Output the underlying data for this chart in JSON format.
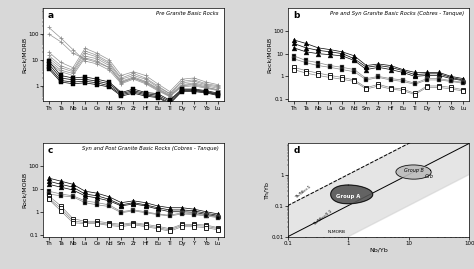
{
  "elements": [
    "Th",
    "Ta",
    "Nb",
    "La",
    "Ce",
    "Nd",
    "Sm",
    "Zr",
    "Hf",
    "Eu",
    "Ti",
    "Dy",
    "Y",
    "Yb",
    "Lu"
  ],
  "panel_a_title": "Pre Granite Basic Rocks",
  "panel_b_title": "Pre and Syn Granite Basic Rocks (Cobres - Tanque)",
  "panel_c_title": "Syn and Post Granite Basic Rocks (Cobres - Tanque)",
  "panel_a_gray": [
    [
      20,
      8,
      5,
      28,
      18,
      10,
      2.5,
      3.5,
      2.5,
      1.2,
      0.6,
      1.8,
      2.0,
      1.4,
      1.1
    ],
    [
      15,
      6,
      4,
      22,
      15,
      8,
      2.0,
      3.0,
      2.0,
      1.0,
      0.5,
      1.5,
      1.7,
      1.2,
      1.0
    ],
    [
      12,
      5,
      3.5,
      18,
      13,
      7,
      1.8,
      2.5,
      1.8,
      0.9,
      0.5,
      1.3,
      1.5,
      1.1,
      0.9
    ],
    [
      10,
      4,
      3,
      14,
      11,
      6,
      1.5,
      2.2,
      1.5,
      0.8,
      0.45,
      1.1,
      1.3,
      1.0,
      0.8
    ],
    [
      8,
      3.5,
      2.5,
      12,
      9,
      5,
      1.3,
      2.0,
      1.3,
      0.7,
      0.4,
      1.0,
      1.2,
      0.9,
      0.7
    ],
    [
      180,
      70,
      25,
      9,
      7,
      4,
      1.2,
      1.8,
      1.2,
      0.65,
      0.38,
      0.9,
      1.0,
      0.8,
      0.65
    ],
    [
      100,
      50,
      18,
      11,
      8,
      5,
      1.4,
      2.0,
      1.4,
      0.75,
      0.42,
      1.0,
      1.1,
      0.85,
      0.7
    ]
  ],
  "panel_a_black": [
    [
      9,
      2.5,
      2.0,
      2.2,
      1.8,
      1.4,
      0.55,
      0.75,
      0.55,
      0.5,
      0.28,
      0.75,
      0.75,
      0.65,
      0.52
    ],
    [
      7,
      2.0,
      1.7,
      1.8,
      1.5,
      1.2,
      0.5,
      0.65,
      0.5,
      0.43,
      0.25,
      0.7,
      0.7,
      0.6,
      0.48
    ],
    [
      5.5,
      1.6,
      1.4,
      1.5,
      1.3,
      1.0,
      0.45,
      0.58,
      0.45,
      0.38,
      0.22,
      0.65,
      0.65,
      0.57,
      0.45
    ],
    [
      4.5,
      1.4,
      1.2,
      1.3,
      1.1,
      0.9,
      0.4,
      0.52,
      0.4,
      0.35,
      0.2,
      0.6,
      0.6,
      0.53,
      0.42
    ]
  ],
  "panel_b_triangle": [
    [
      40,
      28,
      18,
      15,
      12,
      8,
      3.0,
      3.5,
      3.0,
      2.0,
      1.5,
      1.5,
      1.5,
      1.0,
      0.8
    ],
    [
      28,
      18,
      14,
      12,
      10,
      6,
      2.5,
      3.0,
      2.5,
      1.8,
      1.2,
      1.3,
      1.3,
      0.9,
      0.7
    ],
    [
      18,
      12,
      10,
      9,
      8,
      5,
      2.0,
      2.5,
      2.0,
      1.5,
      1.0,
      1.1,
      1.1,
      0.8,
      0.65
    ]
  ],
  "panel_b_sq_filled": [
    [
      8,
      5,
      4,
      3,
      2.5,
      2.0,
      0.8,
      1.0,
      0.8,
      0.7,
      0.5,
      0.8,
      0.8,
      0.65,
      0.55
    ],
    [
      6,
      4,
      3,
      2.5,
      2.0,
      1.6,
      0.7,
      0.9,
      0.7,
      0.6,
      0.45,
      0.7,
      0.7,
      0.6,
      0.5
    ]
  ],
  "panel_b_sq_open": [
    [
      2.5,
      1.8,
      1.4,
      1.1,
      0.9,
      0.7,
      0.32,
      0.45,
      0.32,
      0.28,
      0.18,
      0.38,
      0.38,
      0.33,
      0.26
    ],
    [
      2.0,
      1.4,
      1.1,
      0.9,
      0.75,
      0.6,
      0.28,
      0.38,
      0.28,
      0.24,
      0.16,
      0.33,
      0.33,
      0.28,
      0.23
    ]
  ],
  "panel_c_triangle": [
    [
      30,
      22,
      16,
      8,
      6.5,
      4.5,
      2.5,
      3.0,
      2.5,
      1.8,
      1.5,
      1.5,
      1.3,
      1.0,
      0.8
    ],
    [
      22,
      16,
      12,
      6,
      5.0,
      3.5,
      2.0,
      2.5,
      2.0,
      1.5,
      1.2,
      1.2,
      1.1,
      0.85,
      0.7
    ],
    [
      16,
      12,
      9,
      5,
      4.0,
      3.0,
      1.8,
      2.2,
      1.8,
      1.3,
      1.0,
      1.0,
      0.95,
      0.75,
      0.62
    ]
  ],
  "panel_c_sq_filled": [
    [
      8,
      6,
      5,
      3,
      2.5,
      2.0,
      1.0,
      1.2,
      1.0,
      0.8,
      0.7,
      0.9,
      0.8,
      0.7,
      0.6
    ],
    [
      6,
      5,
      4.5,
      2.5,
      2.0,
      1.7,
      0.9,
      1.1,
      0.9,
      0.75,
      0.65,
      0.8,
      0.75,
      0.65,
      0.55
    ]
  ],
  "panel_c_sq_open": [
    [
      5,
      1.8,
      0.5,
      0.38,
      0.38,
      0.32,
      0.28,
      0.33,
      0.28,
      0.23,
      0.18,
      0.28,
      0.28,
      0.26,
      0.2
    ],
    [
      4,
      1.4,
      0.4,
      0.33,
      0.33,
      0.28,
      0.25,
      0.3,
      0.25,
      0.2,
      0.16,
      0.25,
      0.25,
      0.23,
      0.18
    ],
    [
      3.5,
      1.1,
      0.33,
      0.3,
      0.3,
      0.25,
      0.22,
      0.27,
      0.22,
      0.18,
      0.14,
      0.22,
      0.22,
      0.2,
      0.16
    ]
  ],
  "bg_color": "#d8d8d8",
  "panel_bg": "#ffffff"
}
